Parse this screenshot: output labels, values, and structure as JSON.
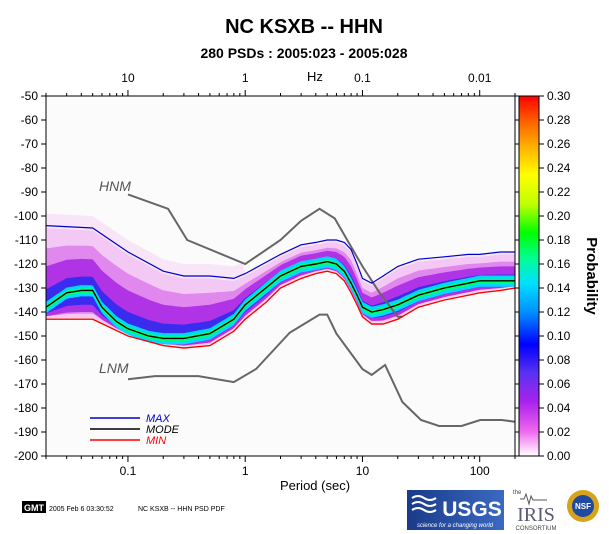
{
  "chart_data": {
    "type": "heatmap",
    "title": "NC KSXB -- HHN",
    "subtitle": "280 PSDs : 2005:023 - 2005:028",
    "xlabel": "Period (sec)",
    "x_top_label": "Hz",
    "x_scale": "log",
    "xlim": [
      0.02,
      200
    ],
    "ylim": [
      -200,
      -50
    ],
    "x_ticks": [
      {
        "v": 0.1,
        "label": "0.1"
      },
      {
        "v": 1,
        "label": "1"
      },
      {
        "v": 10,
        "label": "10"
      },
      {
        "v": 100,
        "label": "100"
      }
    ],
    "x_top_ticks": [
      {
        "v": 0.1,
        "label": "10"
      },
      {
        "v": 1,
        "label": "1"
      },
      {
        "v": 10,
        "label": "0.1"
      },
      {
        "v": 100,
        "label": "0.01"
      }
    ],
    "y_ticks": [
      -50,
      -60,
      -70,
      -80,
      -90,
      -100,
      -110,
      -120,
      -130,
      -140,
      -150,
      -160,
      -170,
      -180,
      -190,
      -200
    ],
    "colorbar": {
      "label": "Probability",
      "range": [
        0,
        0.3
      ],
      "ticks": [
        "0.30",
        "0.28",
        "0.26",
        "0.24",
        "0.22",
        "0.20",
        "0.18",
        "0.16",
        "0.14",
        "0.12",
        "0.10",
        "0.08",
        "0.06",
        "0.04",
        "0.02",
        "0.00"
      ],
      "colors": [
        "#ffffff",
        "#ee66ee",
        "#aa22ee",
        "#5a32f0",
        "#0000ff",
        "#0090ff",
        "#00e0ff",
        "#00ff90",
        "#00ff00",
        "#c0ff00",
        "#ffff00",
        "#ffb000",
        "#ff6000",
        "#ff0000"
      ]
    },
    "series": [
      {
        "name": "MAX",
        "color": "#0000cc",
        "x": [
          0.02,
          0.05,
          0.1,
          0.2,
          0.3,
          0.5,
          0.8,
          1,
          2,
          3,
          4,
          5,
          6,
          7,
          8,
          9,
          10,
          12,
          15,
          20,
          30,
          50,
          80,
          100,
          150,
          200
        ],
        "y": [
          -104,
          -105,
          -115,
          -123,
          -125,
          -125,
          -126,
          -124,
          -116,
          -112,
          -111,
          -110,
          -110,
          -111,
          -114,
          -120,
          -126,
          -128,
          -125,
          -121,
          -118,
          -117,
          -116,
          -116,
          -115,
          -115
        ]
      },
      {
        "name": "MODE",
        "color": "#000000",
        "x": [
          0.02,
          0.03,
          0.04,
          0.05,
          0.06,
          0.08,
          0.1,
          0.15,
          0.2,
          0.3,
          0.5,
          0.8,
          1,
          1.5,
          2,
          3,
          4,
          5,
          6,
          7,
          8,
          9,
          10,
          12,
          15,
          20,
          30,
          50,
          80,
          100,
          150,
          200
        ],
        "y": [
          -138,
          -132,
          -131,
          -131,
          -138,
          -144,
          -147,
          -150,
          -151,
          -151,
          -149,
          -143,
          -137,
          -130,
          -125,
          -121,
          -120,
          -119,
          -120,
          -123,
          -128,
          -133,
          -138,
          -140,
          -139,
          -137,
          -133,
          -130,
          -128,
          -127,
          -127,
          -127
        ]
      },
      {
        "name": "MIN",
        "color": "#ff0000",
        "x": [
          0.02,
          0.05,
          0.1,
          0.2,
          0.3,
          0.5,
          0.8,
          1,
          1.5,
          2,
          3,
          4,
          5,
          6,
          7,
          8,
          9,
          10,
          12,
          15,
          20,
          30,
          50,
          80,
          100,
          150,
          200
        ],
        "y": [
          -143,
          -143,
          -150,
          -154,
          -155,
          -154,
          -148,
          -143,
          -136,
          -130,
          -126,
          -124,
          -123,
          -124,
          -127,
          -132,
          -137,
          -142,
          -145,
          -145,
          -143,
          -138,
          -135,
          -133,
          -132,
          -131,
          -130
        ]
      }
    ],
    "reference_models": [
      {
        "name": "HNM",
        "color": "#666666",
        "x": [
          0.1,
          0.22,
          0.32,
          1,
          2,
          3,
          4.3,
          5.8,
          10,
          14,
          20,
          22
        ],
        "y": [
          -91,
          -97,
          -110,
          -120,
          -110,
          -102,
          -97,
          -101,
          -121,
          -132,
          -142,
          -142
        ]
      },
      {
        "name": "LNM",
        "color": "#666666",
        "x": [
          0.1,
          0.17,
          0.4,
          0.8,
          1.24,
          2.4,
          4.3,
          5,
          6,
          10,
          12,
          15.6,
          21.9,
          31.6,
          45,
          70,
          101,
          154,
          200
        ],
        "y": [
          -168,
          -166.7,
          -166.7,
          -169.2,
          -163.7,
          -148.6,
          -141.1,
          -141.1,
          -149,
          -163.8,
          -166.2,
          -162.1,
          -177.5,
          -185,
          -187.5,
          -187.5,
          -185,
          -185,
          -185.7
        ]
      }
    ],
    "legend": {
      "position": "bottom-left",
      "entries": [
        {
          "label": "MAX",
          "color": "#0000cc"
        },
        {
          "label": "MODE",
          "color": "#000000"
        },
        {
          "label": "MIN",
          "color": "#ff0000"
        }
      ]
    },
    "annotations": [
      "HNM",
      "LNM"
    ]
  },
  "footer": {
    "gmt_badge": "GMT",
    "timestamp": "2005 Feb  6 03:30:52",
    "caption": "NC KSXB -- HHN PSD PDF",
    "usgs_logo": "USGS",
    "usgs_tagline": "science for a changing world",
    "iris_logo": "IRIS",
    "iris_the": "the",
    "iris_consortium": "CONSORTIUM",
    "nsf_logo": "NSF"
  }
}
